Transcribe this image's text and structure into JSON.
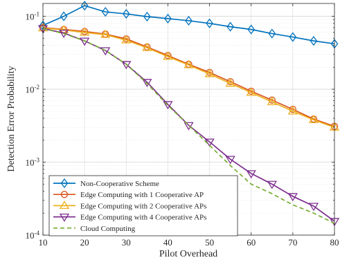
{
  "chart_data": {
    "type": "line",
    "xlabel": "Pilot Overhead",
    "ylabel": "Detection Error Probability",
    "xlim": [
      10,
      80
    ],
    "ylim": [
      0.0001,
      0.15
    ],
    "yscale": "log",
    "grid": true,
    "legend_position": "bottom-left",
    "x": [
      10,
      15,
      20,
      25,
      30,
      35,
      40,
      45,
      50,
      55,
      60,
      65,
      70,
      75,
      80
    ],
    "x_ticks": [
      "10",
      "20",
      "30",
      "40",
      "50",
      "60",
      "70",
      "80"
    ],
    "y_ticks": [
      {
        "base": "10",
        "exp": "-1"
      },
      {
        "base": "10",
        "exp": "-2"
      },
      {
        "base": "10",
        "exp": "-3"
      },
      {
        "base": "10",
        "exp": "-4"
      }
    ],
    "series": [
      {
        "name": "Non-Cooperative Scheme",
        "color": "#0072BD",
        "marker": "diamond",
        "dash": false,
        "values": [
          0.075,
          0.1,
          0.14,
          0.115,
          0.108,
          0.099,
          0.093,
          0.087,
          0.08,
          0.072,
          0.066,
          0.058,
          0.052,
          0.046,
          0.042
        ]
      },
      {
        "name": "Edge Computing with 1 Cooperative AP",
        "color": "#D95319",
        "marker": "circle",
        "dash": false,
        "values": [
          0.07,
          0.066,
          0.062,
          0.057,
          0.049,
          0.038,
          0.029,
          0.022,
          0.017,
          0.0127,
          0.0094,
          0.0071,
          0.0053,
          0.0039,
          0.0031
        ]
      },
      {
        "name": "Edge Computing with 2 Cooperative APs",
        "color": "#EDB120",
        "marker": "triangle-up",
        "dash": false,
        "values": [
          0.069,
          0.065,
          0.06,
          0.056,
          0.047,
          0.037,
          0.028,
          0.0215,
          0.0162,
          0.012,
          0.009,
          0.0067,
          0.005,
          0.0038,
          0.003
        ]
      },
      {
        "name": "Edge Computing with 4 Cooperative APs",
        "color": "#7E2F8E",
        "marker": "triangle-down",
        "dash": false,
        "values": [
          0.068,
          0.059,
          0.046,
          0.034,
          0.022,
          0.0125,
          0.0062,
          0.0032,
          0.0019,
          0.0011,
          0.0007,
          0.0005,
          0.00034,
          0.00025,
          0.000155
        ]
      },
      {
        "name": "Cloud Computing",
        "color": "#77AC30",
        "marker": "none",
        "dash": true,
        "values": [
          0.068,
          0.058,
          0.046,
          0.034,
          0.022,
          0.012,
          0.006,
          0.0032,
          0.0017,
          0.0009,
          0.0005,
          0.00037,
          0.00026,
          0.0002,
          0.000145
        ]
      }
    ]
  }
}
